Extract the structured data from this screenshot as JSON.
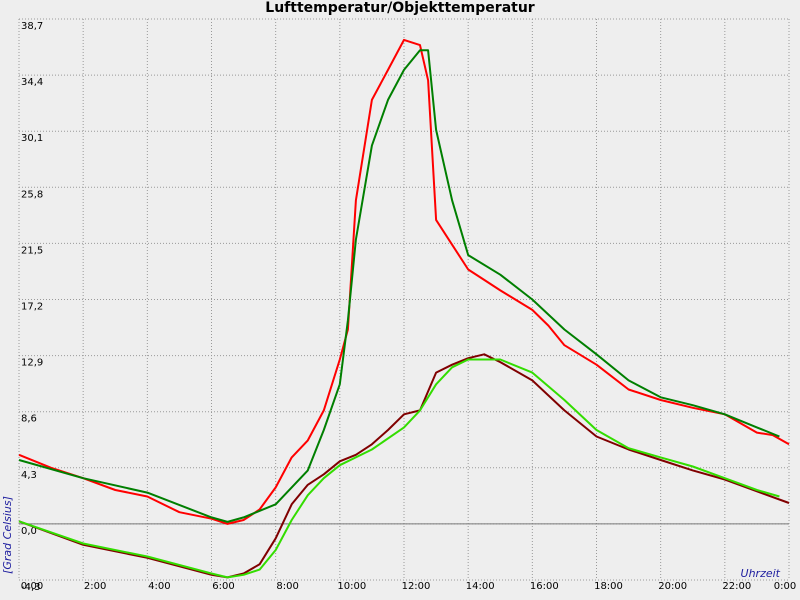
{
  "chart_data": {
    "type": "line",
    "title": "Lufttemperatur/Objekttemperatur",
    "y_label": "[Grad Celsius]",
    "x_label": "Uhrzeit",
    "xlim": [
      0,
      24
    ],
    "ylim": [
      -4.3,
      38.7
    ],
    "grid": true,
    "zero_line": true,
    "xticks": [
      {
        "value": 0,
        "label": "0:00"
      },
      {
        "value": 2,
        "label": "2:00"
      },
      {
        "value": 4,
        "label": "4:00"
      },
      {
        "value": 6,
        "label": "6:00"
      },
      {
        "value": 8,
        "label": "8:00"
      },
      {
        "value": 10,
        "label": "10:00"
      },
      {
        "value": 12,
        "label": "12:00"
      },
      {
        "value": 14,
        "label": "14:00"
      },
      {
        "value": 16,
        "label": "16:00"
      },
      {
        "value": 18,
        "label": "18:00"
      },
      {
        "value": 20,
        "label": "20:00"
      },
      {
        "value": 22,
        "label": "22:00"
      },
      {
        "value": 24,
        "label": "0:00"
      }
    ],
    "yticks": [
      {
        "value": -4.3,
        "label": "-4,3"
      },
      {
        "value": 0,
        "label": "0,0"
      },
      {
        "value": 4.3,
        "label": "4,3"
      },
      {
        "value": 8.6,
        "label": "8,6"
      },
      {
        "value": 12.9,
        "label": "12,9"
      },
      {
        "value": 17.2,
        "label": "17,2"
      },
      {
        "value": 21.5,
        "label": "21,5"
      },
      {
        "value": 25.8,
        "label": "25,8"
      },
      {
        "value": 30.1,
        "label": "30,1"
      },
      {
        "value": 34.4,
        "label": "34,4"
      },
      {
        "value": 38.7,
        "label": "38,7"
      }
    ],
    "series": [
      {
        "color": "#ff0000",
        "x": [
          0,
          1,
          2,
          3,
          4,
          5,
          6,
          6.5,
          7,
          7.5,
          8,
          8.5,
          9,
          9.5,
          10,
          10.25,
          10.5,
          11,
          11.5,
          12,
          12.5,
          12.75,
          13,
          13.5,
          14,
          14.5,
          15,
          16,
          16.5,
          17,
          18,
          19,
          20,
          21,
          22,
          23,
          23.5,
          24
        ],
        "values": [
          5.3,
          4.3,
          3.5,
          2.6,
          2.1,
          0.9,
          0.4,
          0,
          0.3,
          1.1,
          2.8,
          5.1,
          6.4,
          8.7,
          12.6,
          14.9,
          24.8,
          32.5,
          34.8,
          37.1,
          36.7,
          34,
          23.3,
          21.4,
          19.5,
          18.7,
          17.9,
          16.4,
          15.2,
          13.7,
          12.2,
          10.3,
          9.5,
          8.9,
          8.4,
          7,
          6.8,
          6.1
        ]
      },
      {
        "color": "#007f00",
        "x": [
          0,
          2,
          4,
          6,
          6.5,
          7,
          8,
          9,
          9.5,
          10,
          10.25,
          10.5,
          11,
          11.5,
          12,
          12.5,
          12.75,
          13,
          13.5,
          14,
          15,
          16,
          17,
          18,
          19,
          20,
          21,
          22,
          23,
          23.7
        ],
        "values": [
          4.9,
          3.5,
          2.4,
          0.5,
          0.15,
          0.5,
          1.5,
          4.1,
          7.2,
          10.7,
          15.6,
          21.8,
          29,
          32.5,
          34.8,
          36.3,
          36.3,
          30.2,
          24.8,
          20.6,
          19.1,
          17.2,
          14.9,
          13,
          11,
          9.7,
          9.1,
          8.4,
          7.4,
          6.7
        ]
      },
      {
        "color": "#800000",
        "x": [
          0,
          2,
          4,
          6,
          6.5,
          7,
          7.5,
          8,
          8.5,
          9,
          9.5,
          10,
          10.5,
          11,
          11.5,
          12,
          12.5,
          13,
          13.5,
          14,
          14.5,
          15,
          16,
          17,
          18,
          19,
          20,
          21,
          22,
          23,
          24
        ],
        "values": [
          0.2,
          -1.6,
          -2.6,
          -3.9,
          -4.1,
          -3.8,
          -3.1,
          -1.1,
          1.5,
          3,
          3.8,
          4.8,
          5.3,
          6.1,
          7.2,
          8.4,
          8.7,
          11.6,
          12.2,
          12.7,
          13,
          12.4,
          11,
          8.7,
          6.7,
          5.7,
          4.9,
          4.1,
          3.4,
          2.5,
          1.6
        ]
      },
      {
        "color": "#33dd00",
        "x": [
          0,
          2,
          4,
          6,
          6.5,
          7,
          7.5,
          8,
          8.5,
          9,
          9.5,
          10,
          11,
          12,
          12.5,
          13,
          13.5,
          14,
          15,
          16,
          17,
          18,
          19,
          20,
          21,
          22,
          23,
          23.7
        ],
        "values": [
          0.2,
          -1.5,
          -2.5,
          -3.8,
          -4.1,
          -3.9,
          -3.5,
          -2,
          0.3,
          2.2,
          3.5,
          4.5,
          5.7,
          7.4,
          8.7,
          10.7,
          12,
          12.6,
          12.6,
          11.6,
          9.5,
          7.2,
          5.8,
          5.1,
          4.4,
          3.5,
          2.6,
          2.1
        ]
      }
    ]
  }
}
